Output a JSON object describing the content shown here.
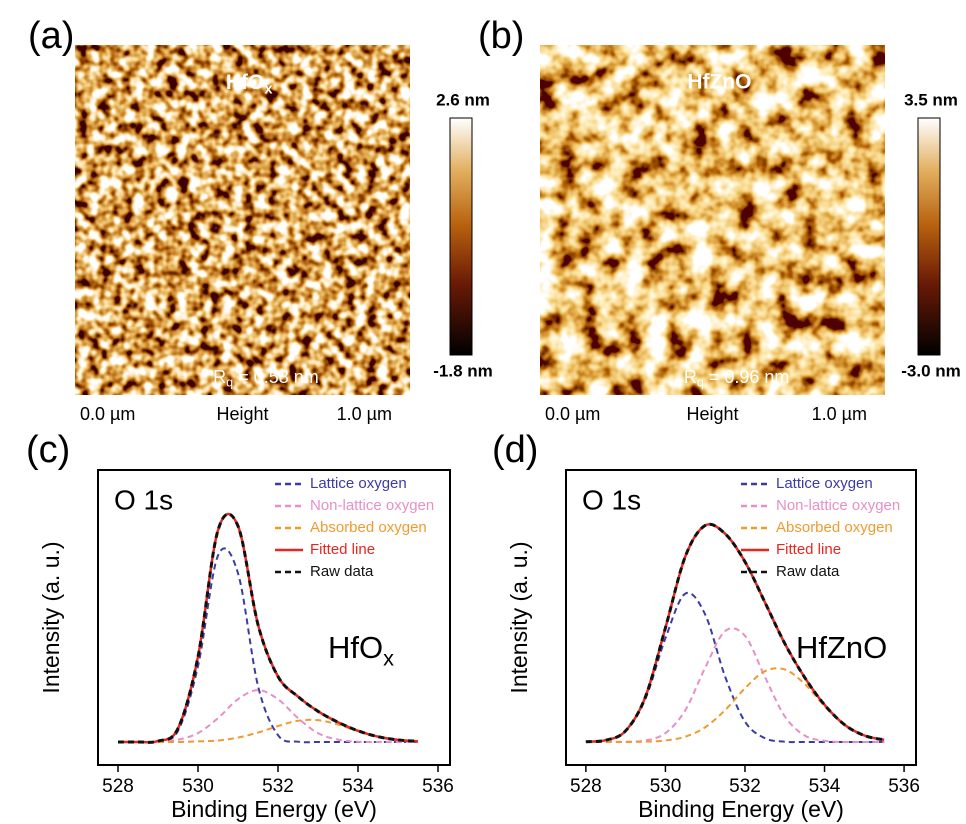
{
  "chart_data": [
    {
      "type": "afm",
      "panel_label": "(a)",
      "title": {
        "main": "HfO",
        "sub": "x"
      },
      "roughness": {
        "main": "R",
        "sub": "q",
        "rest": " = 0.58 nm"
      },
      "colorbar_ticks": [
        {
          "value": -1.8,
          "label": "-1.8 nm"
        },
        {
          "value": 2.6,
          "label": "2.6 nm"
        }
      ],
      "x_labels": [
        "0.0 µm",
        "Height",
        "1.0 µm"
      ]
    },
    {
      "type": "afm",
      "panel_label": "(b)",
      "title": "HfZnO",
      "roughness": {
        "main": "R",
        "sub": "q",
        "rest": " = 0.96 nm"
      },
      "colorbar_ticks": [
        {
          "value": -3.0,
          "label": "-3.0 nm"
        },
        {
          "value": 3.5,
          "label": "3.5 nm"
        }
      ],
      "x_labels": [
        "0.0 µm",
        "Height",
        "1.0 µm"
      ]
    },
    {
      "type": "line",
      "panel_label": "(c)",
      "annotation": "O 1s",
      "sample": {
        "main": "HfO",
        "sub": "x"
      },
      "x_label": "Binding Energy (eV)",
      "y_label": "Intensity (a. u.)",
      "xlim": [
        527.5,
        536.3
      ],
      "xticks": [
        528,
        530,
        532,
        534,
        536
      ],
      "ylim": [
        0,
        1
      ],
      "legend": "upper right",
      "x": [
        528,
        528.5,
        529,
        529.5,
        530,
        530.5,
        531,
        531.5,
        532,
        532.5,
        533,
        533.5,
        534,
        534.5,
        535,
        535.5
      ],
      "series": [
        {
          "name": "Lattice oxygen",
          "color": "#3b3ba6",
          "dash": true,
          "values": [
            0.078,
            0.078,
            0.08,
            0.116,
            0.335,
            0.71,
            0.65,
            0.268,
            0.101,
            0.079,
            0.078,
            0.078,
            0.078,
            0.078,
            0.078,
            0.078
          ]
        },
        {
          "name": "Non-lattice oxygen",
          "color": "#e690c6",
          "dash": true,
          "values": [
            0.078,
            0.078,
            0.079,
            0.086,
            0.108,
            0.159,
            0.223,
            0.254,
            0.223,
            0.159,
            0.108,
            0.086,
            0.079,
            0.078,
            0.078,
            0.078
          ]
        },
        {
          "name": "Absorbed oxygen",
          "color": "#f29a2e",
          "dash": true,
          "values": [
            0.078,
            0.078,
            0.078,
            0.078,
            0.08,
            0.083,
            0.093,
            0.11,
            0.132,
            0.15,
            0.152,
            0.137,
            0.115,
            0.096,
            0.085,
            0.08
          ]
        },
        {
          "name": "Fitted line",
          "color": "#e8261f",
          "dash": false,
          "values": [
            0.078,
            0.078,
            0.081,
            0.124,
            0.367,
            0.796,
            0.81,
            0.476,
            0.3,
            0.232,
            0.182,
            0.145,
            0.116,
            0.096,
            0.085,
            0.08
          ]
        },
        {
          "name": "Raw data",
          "color": "#111111",
          "dash": true,
          "values": [
            0.078,
            0.078,
            0.081,
            0.124,
            0.367,
            0.796,
            0.81,
            0.476,
            0.3,
            0.232,
            0.182,
            0.145,
            0.116,
            0.096,
            0.085,
            0.08
          ]
        }
      ]
    },
    {
      "type": "line",
      "panel_label": "(d)",
      "annotation": "O 1s",
      "sample": "HfZnO",
      "x_label": "Binding Energy (eV)",
      "y_label": "Intensity (a. u.)",
      "xlim": [
        527.5,
        536.3
      ],
      "xticks": [
        528,
        530,
        532,
        534,
        536
      ],
      "ylim": [
        0,
        1
      ],
      "legend": "upper right",
      "x": [
        528,
        528.5,
        529,
        529.5,
        530,
        530.5,
        531,
        531.5,
        532,
        532.5,
        533,
        533.5,
        534,
        534.5,
        535,
        535.5
      ],
      "series": [
        {
          "name": "Lattice oxygen",
          "color": "#3b3ba6",
          "dash": true,
          "values": [
            0.079,
            0.084,
            0.115,
            0.226,
            0.43,
            0.581,
            0.51,
            0.3,
            0.147,
            0.091,
            0.079,
            0.078,
            0.078,
            0.078,
            0.078,
            0.078
          ]
        },
        {
          "name": "Non-lattice oxygen",
          "color": "#e690c6",
          "dash": true,
          "values": [
            0.078,
            0.078,
            0.079,
            0.083,
            0.108,
            0.186,
            0.33,
            0.454,
            0.438,
            0.299,
            0.165,
            0.1,
            0.082,
            0.078,
            0.078,
            0.078
          ]
        },
        {
          "name": "Absorbed oxygen",
          "color": "#f29a2e",
          "dash": true,
          "values": [
            0.078,
            0.078,
            0.078,
            0.079,
            0.083,
            0.096,
            0.128,
            0.186,
            0.26,
            0.318,
            0.324,
            0.275,
            0.2,
            0.137,
            0.1,
            0.085
          ]
        },
        {
          "name": "Fitted line",
          "color": "#e8261f",
          "dash": false,
          "values": [
            0.079,
            0.084,
            0.116,
            0.232,
            0.465,
            0.707,
            0.812,
            0.784,
            0.689,
            0.552,
            0.412,
            0.297,
            0.204,
            0.137,
            0.1,
            0.085
          ]
        },
        {
          "name": "Raw data",
          "color": "#111111",
          "dash": true,
          "values": [
            0.079,
            0.084,
            0.116,
            0.232,
            0.465,
            0.707,
            0.812,
            0.784,
            0.689,
            0.552,
            0.412,
            0.297,
            0.204,
            0.137,
            0.1,
            0.085
          ]
        }
      ]
    }
  ]
}
